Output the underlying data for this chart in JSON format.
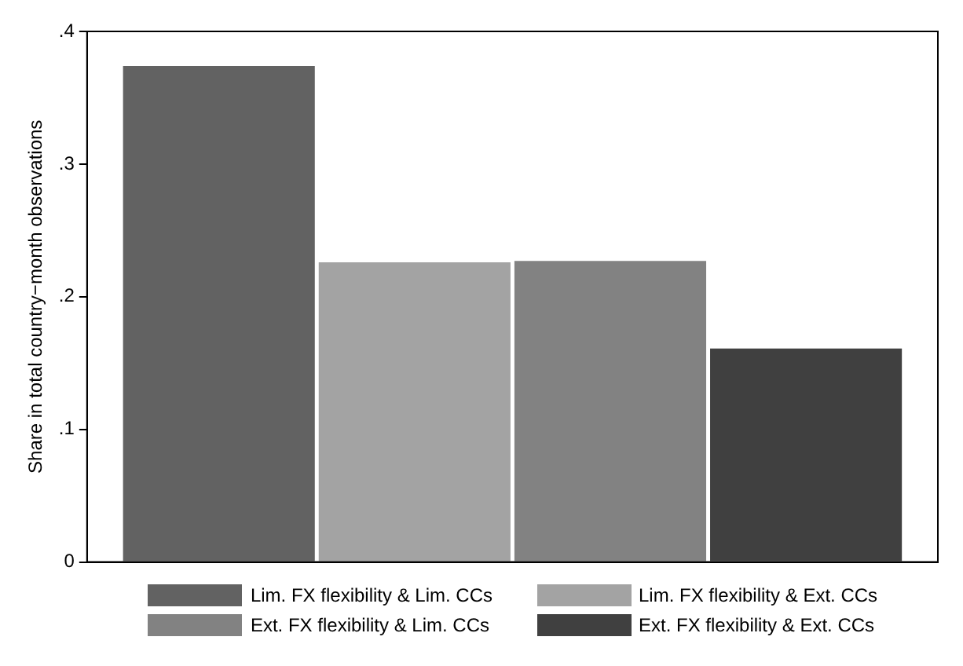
{
  "chart_data": {
    "type": "bar",
    "categories": [
      null
    ],
    "series": [
      {
        "name": "Lim. FX flexibility & Lim. CCs",
        "color": "#626262",
        "values": [
          0.374
        ]
      },
      {
        "name": "Lim. FX flexibility & Ext. CCs",
        "color": "#a3a3a3",
        "values": [
          0.226
        ]
      },
      {
        "name": "Ext. FX flexibility & Lim. CCs",
        "color": "#828282",
        "values": [
          0.227
        ]
      },
      {
        "name": "Ext. FX flexibility & Ext. CCs",
        "color": "#404040",
        "values": [
          0.161
        ]
      }
    ],
    "ylabel": "Share in total country−month observations",
    "ylim": [
      0,
      0.4
    ],
    "yticks": [
      0,
      {
        "value": 0.1,
        "label": ".1"
      },
      {
        "value": 0.2,
        "label": ".2"
      },
      {
        "value": 0.3,
        "label": ".3"
      },
      {
        "value": 0.4,
        "label": ".4"
      }
    ],
    "grid": false,
    "legend": "bottom"
  }
}
